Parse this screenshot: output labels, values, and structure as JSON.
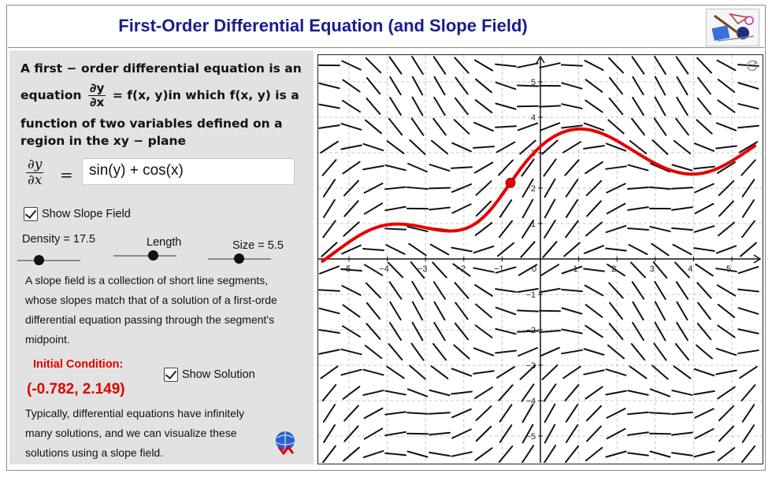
{
  "title": "First-Order Differential Equation (and Slope Field)",
  "description": {
    "line1": "A first − order differential equation is an",
    "line2_pre": "equation",
    "line2_num": "∂y",
    "line2_den": "∂x",
    "line2_post": "= f(x, y)in which f(x, y) is a",
    "line3": "function of two variables defined on a",
    "line4": "region in the xy − plane"
  },
  "equation": {
    "lhs_num": "∂y",
    "lhs_den": "∂x",
    "equals": "=",
    "value": "sin(y) + cos(x)"
  },
  "show_slope_field": {
    "label": "Show Slope Field",
    "checked": true
  },
  "sliders": {
    "density": {
      "label": "Density = 17.5",
      "value": 17.5
    },
    "length": {
      "label": "Length"
    },
    "size": {
      "label": "Size = 5.5",
      "value": 5.5
    }
  },
  "paragraph1": [
    "A slope field is a collection of short line segments,",
    "whose slopes match that of a solution of a first-orde",
    "differential equation passing through the segment's",
    "midpoint."
  ],
  "initial_condition": {
    "label": "Initial Condition:",
    "value": "(-0.782, 2.149)",
    "x": -0.782,
    "y": 2.149
  },
  "show_solution": {
    "label": "Show Solution",
    "checked": true
  },
  "paragraph2": [
    "Typically, differential equations have infinitely",
    "many solutions, and we can visualize these",
    "solutions using a slope field."
  ],
  "graph": {
    "x_range": [
      -5.8,
      5.8
    ],
    "y_range": [
      -5.8,
      5.6
    ],
    "x_ticks": [
      "−5",
      "−4",
      "−3",
      "−2",
      "−1",
      "0",
      "1",
      "2",
      "3",
      "4",
      "5"
    ],
    "y_ticks": [
      "5",
      "4",
      "3",
      "2",
      "1",
      "−1",
      "−2",
      "−3",
      "−4",
      "−5"
    ],
    "grid": true,
    "solution_color": "#e60000",
    "segment_color": "#111111"
  },
  "colors": {
    "title": "#1b1b8f",
    "accent": "#e00000",
    "panel": "#e2e2e2"
  },
  "icons": {
    "logo": "geometry-tools-logo",
    "refresh": "refresh-icon",
    "globe": "globe-logo"
  }
}
